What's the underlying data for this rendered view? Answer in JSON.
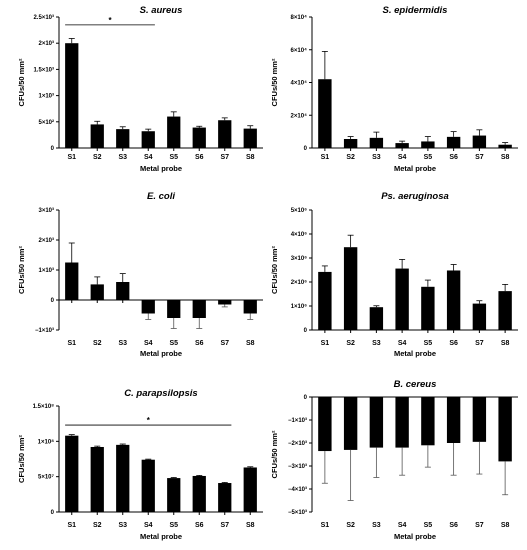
{
  "chart_data": [
    {
      "type": "bar",
      "title": "S. aureus",
      "xlabel": "Metal probe",
      "ylabel": "CFUs/50 mm²",
      "categories": [
        "S1",
        "S2",
        "S3",
        "S4",
        "S5",
        "S6",
        "S7",
        "S8"
      ],
      "values": [
        2000,
        450,
        360,
        320,
        600,
        390,
        530,
        370
      ],
      "errors": [
        90,
        60,
        45,
        40,
        90,
        25,
        45,
        55
      ],
      "ylim": [
        0,
        2500
      ],
      "yticks": [
        0,
        500,
        1000,
        1500,
        2000,
        2500
      ],
      "ytick_labels": [
        "0",
        "5×10²",
        "1×10³",
        "1.5×10³",
        "2×10³",
        "2.5×10³"
      ],
      "significance": {
        "from": "S1",
        "to": "S4",
        "y": 2350,
        "label": "*"
      }
    },
    {
      "type": "bar",
      "title": "S. epidermidis",
      "xlabel": "Metal probe",
      "ylabel": "CFUs/50 mm²",
      "categories": [
        "S1",
        "S2",
        "S3",
        "S4",
        "S5",
        "S6",
        "S7",
        "S8"
      ],
      "values": [
        42000,
        5500,
        6200,
        3000,
        4000,
        6800,
        7600,
        2000
      ],
      "errors": [
        17000,
        1500,
        3500,
        1200,
        3000,
        3200,
        3500,
        1300
      ],
      "ylim": [
        0,
        80000
      ],
      "yticks": [
        0,
        20000,
        40000,
        60000,
        80000
      ],
      "ytick_labels": [
        "0",
        "2×10⁴",
        "4×10⁴",
        "6×10⁴",
        "8×10⁴"
      ]
    },
    {
      "type": "bar",
      "title": "E. coli",
      "xlabel": "Metal probe",
      "ylabel": "CFUs/50 mm²",
      "categories": [
        "S1",
        "S2",
        "S3",
        "S4",
        "S5",
        "S6",
        "S7",
        "S8"
      ],
      "values": [
        1250,
        520,
        600,
        -450,
        -600,
        -600,
        -150,
        -450
      ],
      "errors": [
        650,
        250,
        280,
        200,
        350,
        350,
        80,
        200
      ],
      "ylim": [
        -1000,
        3000
      ],
      "yticks": [
        -1000,
        0,
        1000,
        2000,
        3000
      ],
      "ytick_labels": [
        "−1×10³",
        "0",
        "1×10³",
        "2×10³",
        "3×10³"
      ]
    },
    {
      "type": "bar",
      "title": "Ps. aeruginosa",
      "xlabel": "Metal probe",
      "ylabel": "CFUs/50 mm²",
      "categories": [
        "S1",
        "S2",
        "S3",
        "S4",
        "S5",
        "S6",
        "S7",
        "S8"
      ],
      "values": [
        2420000,
        3450000,
        950000,
        2560000,
        1800000,
        2480000,
        1100000,
        1620000
      ],
      "errors": [
        250000,
        500000,
        60000,
        380000,
        280000,
        250000,
        120000,
        280000
      ],
      "ylim": [
        0,
        5000000
      ],
      "yticks": [
        0,
        1000000,
        2000000,
        3000000,
        4000000,
        5000000
      ],
      "ytick_labels": [
        "0",
        "1×10⁶",
        "2×10⁶",
        "3×10⁶",
        "4×10⁶",
        "5×10⁶"
      ]
    },
    {
      "type": "bar",
      "title": "C. parapsilopsis",
      "xlabel": "Metal probe",
      "ylabel": "CFUs/50 mm²",
      "categories": [
        "S1",
        "S2",
        "S3",
        "S4",
        "S5",
        "S6",
        "S7",
        "S8"
      ],
      "values": [
        108000000,
        92000000,
        95000000,
        74000000,
        48000000,
        51000000,
        41000000,
        63000000
      ],
      "errors": [
        1500000,
        1200000,
        1200000,
        800000,
        800000,
        800000,
        800000,
        1000000
      ],
      "ylim": [
        0,
        150000000
      ],
      "yticks": [
        0,
        50000000,
        100000000,
        150000000
      ],
      "ytick_labels": [
        "0",
        "5×10⁷",
        "1×10⁸",
        "1.5×10⁸"
      ],
      "significance": {
        "from": "S1",
        "to": "S7",
        "y": 123000000,
        "label": "*"
      }
    },
    {
      "type": "bar",
      "title": "B. cereus",
      "xlabel": "Metal probe",
      "ylabel": "CFUs/50 mm²",
      "categories": [
        "S1",
        "S2",
        "S3",
        "S4",
        "S5",
        "S6",
        "S7",
        "S8"
      ],
      "values": [
        -2350,
        -2300,
        -2200,
        -2200,
        -2100,
        -2000,
        -1950,
        -2800
      ],
      "errors": [
        1400,
        2200,
        1300,
        1200,
        950,
        1400,
        1400,
        1450
      ],
      "ylim": [
        -5000,
        0
      ],
      "yticks": [
        -5000,
        -4000,
        -3000,
        -2000,
        -1000,
        0
      ],
      "ytick_labels": [
        "−5×10³",
        "−4×10³",
        "−3×10³",
        "−2×10³",
        "−1×10³",
        "0"
      ]
    }
  ]
}
